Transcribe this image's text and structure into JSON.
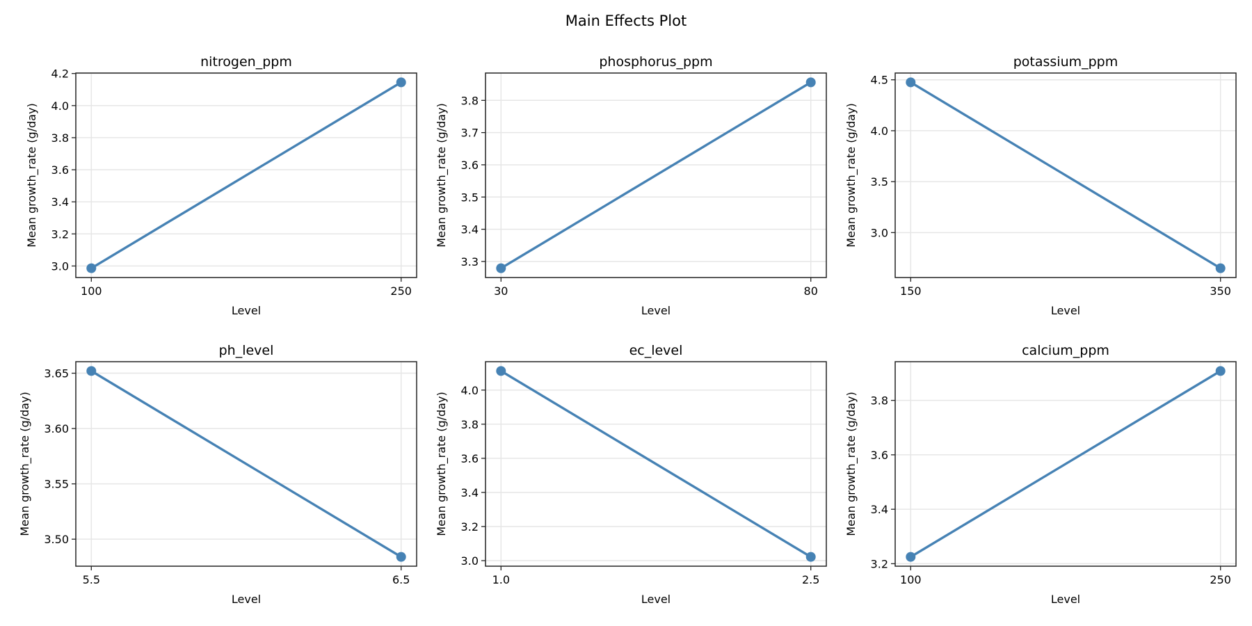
{
  "figure_title": "Main Effects Plot",
  "colors": {
    "line": "#4682b4",
    "grid": "#e6e6e6",
    "axis": "#222222"
  },
  "chart_data": [
    {
      "type": "line",
      "title": "nitrogen_ppm",
      "xlabel": "Level",
      "ylabel": "Mean growth_rate (g/day)",
      "x_ticks": [
        "100",
        "250"
      ],
      "values": [
        2.986,
        4.145
      ],
      "y_ticks": [
        "3.0",
        "3.2",
        "3.4",
        "3.6",
        "3.8",
        "4.0",
        "4.2"
      ],
      "grid": true
    },
    {
      "type": "line",
      "title": "phosphorus_ppm",
      "xlabel": "Level",
      "ylabel": "Mean growth_rate (g/day)",
      "x_ticks": [
        "30",
        "80"
      ],
      "values": [
        3.279,
        3.856
      ],
      "y_ticks": [
        "3.3",
        "3.4",
        "3.5",
        "3.6",
        "3.7",
        "3.8"
      ],
      "grid": true
    },
    {
      "type": "line",
      "title": "potassium_ppm",
      "xlabel": "Level",
      "ylabel": "Mean growth_rate (g/day)",
      "x_ticks": [
        "150",
        "350"
      ],
      "values": [
        4.475,
        2.65
      ],
      "y_ticks": [
        "3.0",
        "3.5",
        "4.0",
        "4.5"
      ],
      "grid": true
    },
    {
      "type": "line",
      "title": "ph_level",
      "xlabel": "Level",
      "ylabel": "Mean growth_rate (g/day)",
      "x_ticks": [
        "5.5",
        "6.5"
      ],
      "values": [
        3.652,
        3.484
      ],
      "y_ticks": [
        "3.50",
        "3.55",
        "3.60",
        "3.65"
      ],
      "grid": true
    },
    {
      "type": "line",
      "title": "ec_level",
      "xlabel": "Level",
      "ylabel": "Mean growth_rate (g/day)",
      "x_ticks": [
        "1.0",
        "2.5"
      ],
      "values": [
        4.112,
        3.022
      ],
      "y_ticks": [
        "3.0",
        "3.2",
        "3.4",
        "3.6",
        "3.8",
        "4.0"
      ],
      "grid": true
    },
    {
      "type": "line",
      "title": "calcium_ppm",
      "xlabel": "Level",
      "ylabel": "Mean growth_rate (g/day)",
      "x_ticks": [
        "100",
        "250"
      ],
      "values": [
        3.225,
        3.908
      ],
      "y_ticks": [
        "3.2",
        "3.4",
        "3.6",
        "3.8"
      ],
      "grid": true
    }
  ]
}
